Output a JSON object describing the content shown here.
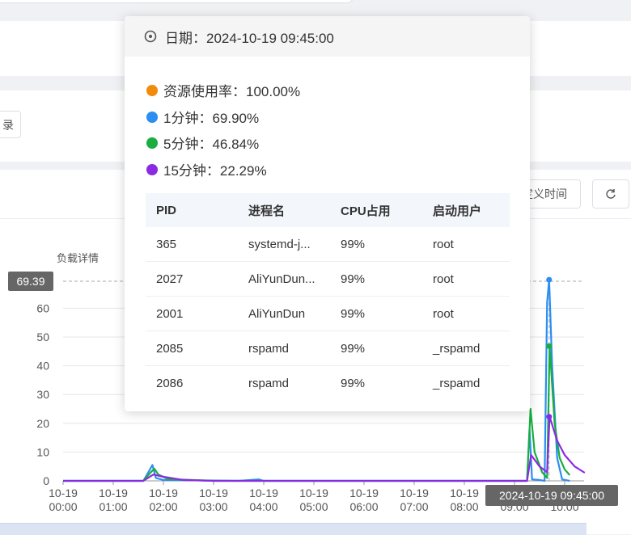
{
  "toolbar": {
    "record_label": "录",
    "custom_time_label": "自定义时间",
    "refresh_icon": "refresh-icon"
  },
  "chart_data": {
    "type": "line",
    "title": "负载详情",
    "x": [
      "10-19 00:00",
      "10-19 01:00",
      "10-19 02:00",
      "10-19 03:00",
      "10-19 04:00",
      "10-19 05:00",
      "10-19 06:00",
      "10-19 07:00",
      "10-19 08:00",
      "10-19 09:00",
      "10-19 10:00"
    ],
    "xtick_labels": [
      [
        "10-19",
        "00:00"
      ],
      [
        "10-19",
        "01:00"
      ],
      [
        "10-19",
        "02:00"
      ],
      [
        "10-19",
        "03:00"
      ],
      [
        "10-19",
        "04:00"
      ],
      [
        "10-19",
        "05:00"
      ],
      [
        "10-19",
        "06:00"
      ],
      [
        "10-19",
        "07:00"
      ],
      [
        "10-19",
        "08:00"
      ],
      [
        "10-19",
        "09:00"
      ],
      [
        "10-19",
        "10:00"
      ]
    ],
    "yticks": [
      0,
      10,
      20,
      30,
      40,
      50,
      60
    ],
    "ylim": [
      0,
      70
    ],
    "series": [
      {
        "name": "1分钟",
        "color": "#2b8ef0",
        "points": [
          [
            0,
            0
          ],
          [
            1.6,
            0
          ],
          [
            1.7,
            3
          ],
          [
            1.78,
            5.5
          ],
          [
            1.85,
            1
          ],
          [
            2.0,
            0.3
          ],
          [
            3.5,
            0
          ],
          [
            3.9,
            0.5
          ],
          [
            4.0,
            0
          ],
          [
            9.0,
            0
          ],
          [
            9.25,
            0
          ],
          [
            9.3,
            18
          ],
          [
            9.35,
            0.5
          ],
          [
            9.5,
            0.3
          ],
          [
            9.6,
            0
          ],
          [
            9.65,
            62
          ],
          [
            9.69,
            69.9
          ],
          [
            9.75,
            40
          ],
          [
            9.85,
            8
          ],
          [
            9.95,
            0.5
          ],
          [
            10.1,
            0
          ]
        ]
      },
      {
        "name": "5分钟",
        "color": "#1aad3f",
        "points": [
          [
            0,
            0
          ],
          [
            1.6,
            0
          ],
          [
            1.75,
            3
          ],
          [
            1.82,
            4.2
          ],
          [
            1.9,
            2.2
          ],
          [
            2.1,
            0.6
          ],
          [
            3,
            0
          ],
          [
            9.0,
            0
          ],
          [
            9.25,
            0
          ],
          [
            9.32,
            25
          ],
          [
            9.4,
            10
          ],
          [
            9.55,
            3
          ],
          [
            9.65,
            1
          ],
          [
            9.7,
            46.84
          ],
          [
            9.8,
            20
          ],
          [
            9.9,
            8
          ],
          [
            10.0,
            4
          ],
          [
            10.1,
            2
          ]
        ]
      },
      {
        "name": "15分钟",
        "color": "#8a2be2",
        "points": [
          [
            0,
            0
          ],
          [
            1.6,
            0
          ],
          [
            1.8,
            2.2
          ],
          [
            2.0,
            1.4
          ],
          [
            2.4,
            0.3
          ],
          [
            3,
            0
          ],
          [
            9.0,
            0
          ],
          [
            9.25,
            0
          ],
          [
            9.33,
            9
          ],
          [
            9.5,
            5
          ],
          [
            9.65,
            3
          ],
          [
            9.7,
            22.29
          ],
          [
            9.85,
            14
          ],
          [
            10.0,
            9
          ],
          [
            10.2,
            5
          ],
          [
            10.4,
            2.8
          ]
        ]
      }
    ],
    "hover_value_label": "69.39",
    "hover_time_label": "2024-10-19 09:45:00"
  },
  "tooltip": {
    "date_label": "日期：2024-10-19 09:45:00",
    "legend": [
      {
        "label": "资源使用率：100.00%",
        "color": "#f28a0c"
      },
      {
        "label": "1分钟：69.90%",
        "color": "#2b8ef0"
      },
      {
        "label": "5分钟：46.84%",
        "color": "#1aad3f"
      },
      {
        "label": "15分钟：22.29%",
        "color": "#8a2be2"
      }
    ],
    "table": {
      "headers": [
        "PID",
        "进程名",
        "CPU占用",
        "启动用户"
      ],
      "rows": [
        [
          "365",
          "systemd-j...",
          "99%",
          "root"
        ],
        [
          "2027",
          "AliYunDun...",
          "99%",
          "root"
        ],
        [
          "2001",
          "AliYunDun",
          "99%",
          "root"
        ],
        [
          "2085",
          "rspamd",
          "99%",
          "_rspamd"
        ],
        [
          "2086",
          "rspamd",
          "99%",
          "_rspamd"
        ]
      ]
    }
  }
}
